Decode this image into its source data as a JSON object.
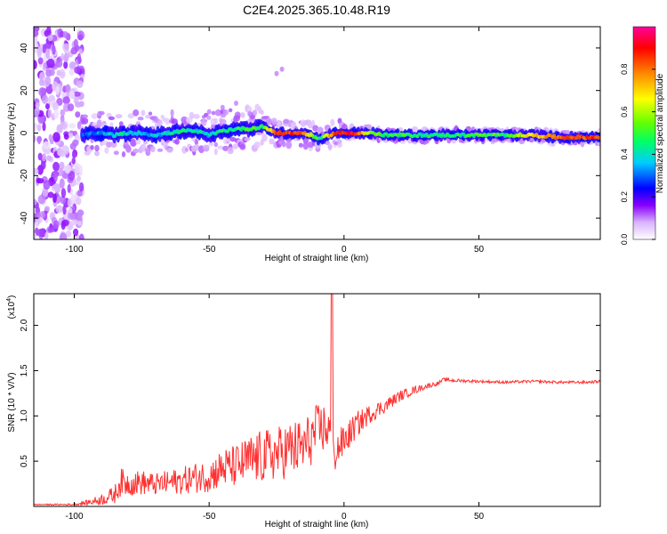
{
  "title": "C2E4.2025.365.10.48.R19",
  "chart_data": [
    {
      "type": "heatmap",
      "title": "C2E4.2025.365.10.48.R19",
      "xlabel": "Height of straight line (km)",
      "ylabel": "Frequency (Hz)",
      "xlim": [
        -115,
        95
      ],
      "ylim": [
        -50,
        50
      ],
      "x_ticks": [
        -100,
        -50,
        0,
        50
      ],
      "y_ticks": [
        -40,
        -20,
        0,
        20,
        40
      ],
      "x_tick_labels": [
        "-100",
        "-50",
        "0",
        "50"
      ],
      "y_tick_labels": [
        "-40",
        "-20",
        "0",
        "20",
        "40"
      ],
      "colorbar": {
        "label": "Normalized spectral amplitude",
        "range": [
          0,
          1
        ],
        "ticks": [
          0.0,
          0.2,
          0.4,
          0.6,
          0.8
        ],
        "tick_labels": [
          "0.0",
          "0.2",
          "0.4",
          "0.6",
          "0.8"
        ],
        "colors": [
          "#ffffff",
          "#d9b3ff",
          "#8800ff",
          "#0000ff",
          "#00ccff",
          "#00ff66",
          "#66ff00",
          "#ffff00",
          "#ff8800",
          "#ff0000",
          "#ff0099"
        ]
      },
      "ridge": {
        "x": [
          -97,
          -90,
          -85,
          -80,
          -75,
          -70,
          -65,
          -60,
          -55,
          -50,
          -45,
          -40,
          -35,
          -30,
          -25,
          -20,
          -15,
          -12,
          -9,
          -6,
          -3,
          0,
          5,
          10,
          15,
          20,
          30,
          40,
          50,
          60,
          70,
          80,
          95
        ],
        "y": [
          -1,
          0,
          -1,
          0,
          0,
          -1,
          0,
          1,
          1,
          -1,
          1,
          2,
          2,
          3,
          0,
          0,
          0,
          -1,
          -3,
          -1,
          0,
          0,
          0,
          0,
          -1,
          -1,
          -1,
          -1,
          -1,
          -1,
          -1,
          -2,
          -2
        ],
        "amplitude": [
          0.3,
          0.35,
          0.4,
          0.4,
          0.35,
          0.35,
          0.4,
          0.45,
          0.4,
          0.4,
          0.45,
          0.45,
          0.5,
          0.5,
          0.85,
          0.85,
          0.8,
          0.6,
          0.45,
          0.7,
          0.85,
          0.9,
          0.85,
          0.55,
          0.5,
          0.5,
          0.45,
          0.45,
          0.5,
          0.5,
          0.7,
          0.8,
          0.85
        ]
      }
    },
    {
      "type": "line",
      "xlabel": "Height of straight line (km)",
      "ylabel": "SNR (10 * V/V)",
      "y_scale_note": "(x10^4)",
      "y_scale_base": "(x10",
      "y_scale_exp": "4",
      "y_scale_close": ")",
      "xlim": [
        -115,
        95
      ],
      "ylim": [
        0,
        2.35
      ],
      "x_ticks": [
        -100,
        -50,
        0,
        50
      ],
      "y_ticks": [
        0.5,
        1.0,
        1.5,
        2.0
      ],
      "x_tick_labels": [
        "-100",
        "-50",
        "0",
        "50"
      ],
      "y_tick_labels": [
        "0.5",
        "1.0",
        "1.5",
        "2.0"
      ],
      "color": "#ff3030",
      "series": [
        {
          "name": "SNR",
          "x": [
            -115,
            -100,
            -95,
            -90,
            -85,
            -83,
            -80,
            -75,
            -70,
            -65,
            -60,
            -55,
            -50,
            -45,
            -40,
            -35,
            -30,
            -25,
            -20,
            -15,
            -10,
            -7,
            -5,
            -4.5,
            -4,
            -3,
            0,
            5,
            10,
            15,
            20,
            25,
            30,
            35,
            37,
            40,
            50,
            60,
            70,
            80,
            90,
            95
          ],
          "y": [
            0.02,
            0.02,
            0.04,
            0.07,
            0.12,
            0.25,
            0.24,
            0.25,
            0.23,
            0.25,
            0.27,
            0.3,
            0.32,
            0.4,
            0.42,
            0.48,
            0.52,
            0.55,
            0.6,
            0.62,
            0.8,
            0.85,
            0.8,
            2.3,
            0.5,
            0.6,
            0.7,
            0.9,
            1.02,
            1.1,
            1.2,
            1.27,
            1.32,
            1.36,
            1.4,
            1.39,
            1.38,
            1.37,
            1.38,
            1.37,
            1.37,
            1.38
          ],
          "noise": [
            0.005,
            0.01,
            0.03,
            0.06,
            0.1,
            0.16,
            0.14,
            0.14,
            0.12,
            0.14,
            0.15,
            0.17,
            0.18,
            0.22,
            0.24,
            0.28,
            0.3,
            0.3,
            0.32,
            0.32,
            0.3,
            0.28,
            0.25,
            0.0,
            0.25,
            0.22,
            0.18,
            0.14,
            0.1,
            0.08,
            0.06,
            0.05,
            0.03,
            0.02,
            0.02,
            0.02,
            0.015,
            0.015,
            0.015,
            0.015,
            0.015,
            0.015
          ]
        }
      ]
    }
  ]
}
